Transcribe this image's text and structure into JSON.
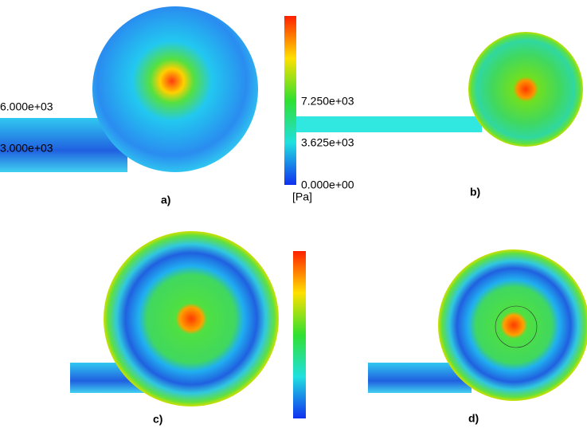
{
  "panels": [
    {
      "label": "a)"
    },
    {
      "label": "b)"
    },
    {
      "label": "c)"
    },
    {
      "label": "d)"
    }
  ],
  "panel_a_contour_labels": [
    "6.000e+03",
    "3.000e+03"
  ],
  "colorbar": {
    "tick_labels": [
      "7.250e+03",
      "3.625e+03",
      "0.000e+00"
    ],
    "unit": "[Pa]"
  }
}
